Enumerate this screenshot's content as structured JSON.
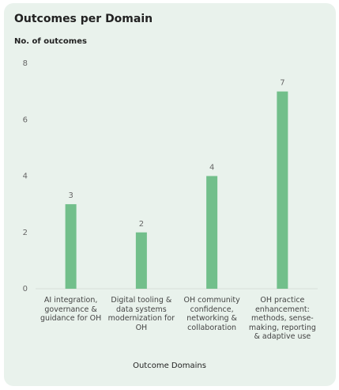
{
  "chart_data": {
    "type": "bar",
    "title": "Outcomes per Domain",
    "y_label": "No. of outcomes",
    "x_label": "Outcome Domains",
    "categories": [
      "AI integration, governance & guidance for OH",
      "Digital tooling & data systems modernization for OH",
      "OH community confidence, networking & collaboration",
      "OH practice enhancement: methods, sense-making, reporting & adaptive use"
    ],
    "values": [
      3,
      2,
      4,
      7
    ],
    "color": "#72bf8b",
    "ylim": [
      0,
      8
    ],
    "yticks": [
      0,
      2,
      4,
      6,
      8
    ],
    "grid": false
  }
}
